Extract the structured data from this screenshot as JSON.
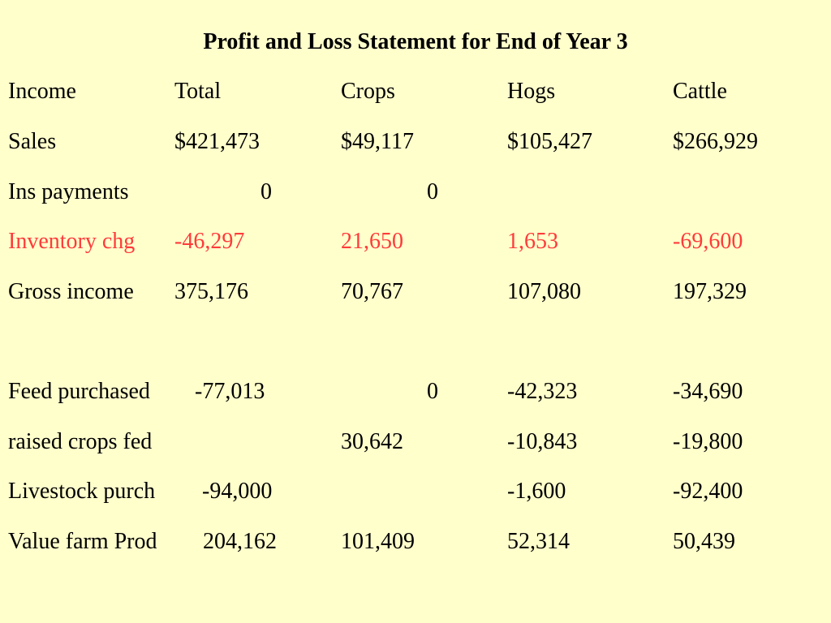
{
  "title": "Profit and Loss Statement for End of Year 3",
  "colors": {
    "background": "#ffffcc",
    "highlight": "#ff3b3b",
    "text": "#000000"
  },
  "header": {
    "income": "Income",
    "total": "Total",
    "crops": "Crops",
    "hogs": "Hogs",
    "cattle": "Cattle"
  },
  "rows": {
    "sales": {
      "label": "Sales",
      "total": "$421,473",
      "crops": "$49,117",
      "hogs": "$105,427",
      "cattle": "$266,929"
    },
    "ins_payments": {
      "label": "Ins payments",
      "total": "0",
      "crops": "0",
      "hogs": "",
      "cattle": ""
    },
    "inventory_chg": {
      "label": "Inventory chg",
      "total": "-46,297",
      "crops": "21,650",
      "hogs": "1,653",
      "cattle": "-69,600"
    },
    "gross_income": {
      "label": "Gross income",
      "total": "375,176",
      "crops": "70,767",
      "hogs": "107,080",
      "cattle": "197,329"
    },
    "feed_purchased": {
      "label": "Feed purchased",
      "total": "-77,013",
      "crops": "0",
      "hogs": "-42,323",
      "cattle": "-34,690"
    },
    "raised_crops_fed": {
      "label": "raised crops fed",
      "total": "",
      "crops": "30,642",
      "hogs": "-10,843",
      "cattle": "-19,800"
    },
    "livestock_purch": {
      "label": "Livestock purch",
      "total": "-94,000",
      "crops": "",
      "hogs": "-1,600",
      "cattle": "-92,400"
    },
    "value_farm_prod": {
      "label": "Value farm Prod",
      "total": "204,162",
      "crops": "101,409",
      "hogs": "52,314",
      "cattle": "50,439"
    }
  }
}
